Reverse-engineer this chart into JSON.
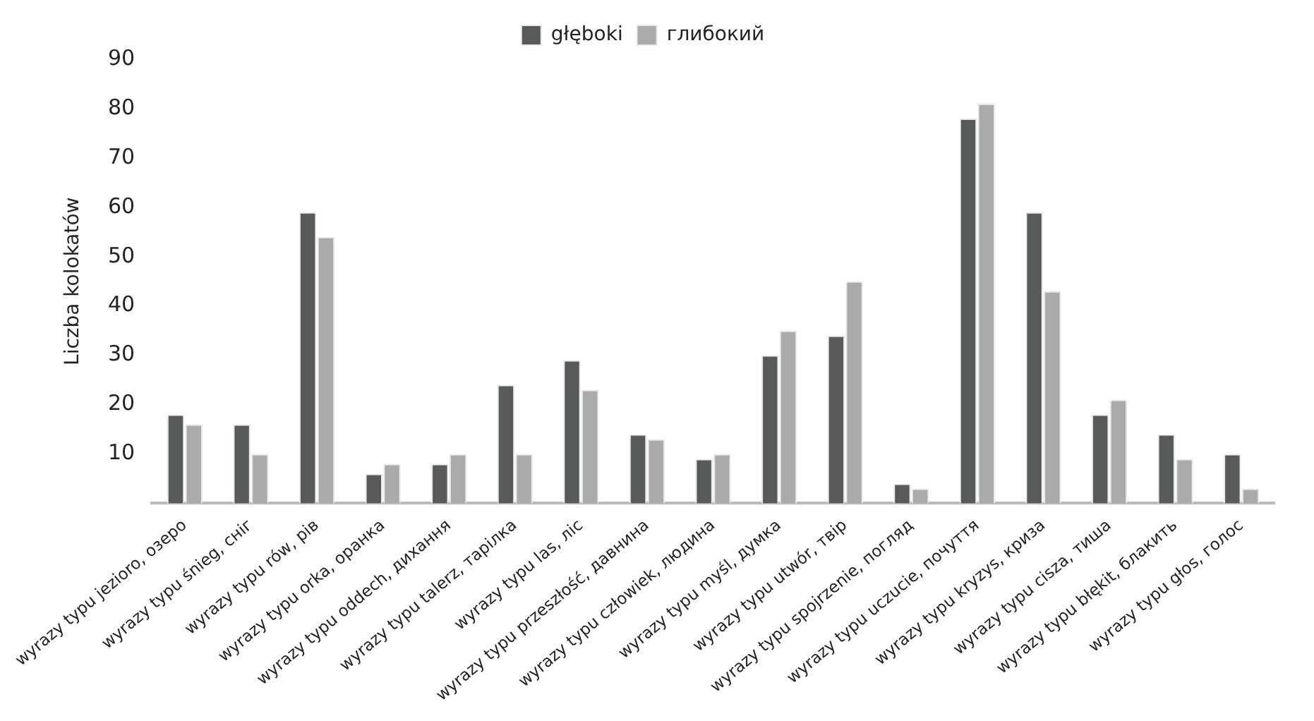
{
  "chart_data": {
    "type": "bar",
    "ylabel": "Liczba kolokatów",
    "categories": [
      "wyrazy typu jezioro, озеро",
      "wyrazy typu śnieg, сніг",
      "wyrazy typu rów, рів",
      "wyrazy typu orka, оранка",
      "wyrazy typu oddech, дихання",
      "wyrazy typu talerz, тарілка",
      "wyrazy typu las, ліс",
      "wyrazy typu przeszłość, давнина",
      "wyrazy typu człowiek, людина",
      "wyrazy typu myśl, думка",
      "wyrazy typu utwór, твір",
      "wyrazy typu spojrzenie, погляд",
      "wyrazy typu uczucie, почуття",
      "wyrazy typu kryzys, криза",
      "wyrazy typu cisza, тиша",
      "wyrazy typu błękit, блакить",
      "wyrazy typu głos, голос"
    ],
    "series": [
      {
        "name": "głęboki",
        "color": "#575a5a",
        "values": [
          18,
          16,
          59,
          6,
          8,
          24,
          29,
          14,
          9,
          30,
          34,
          4,
          78,
          59,
          18,
          14,
          10
        ]
      },
      {
        "name": "глибокий",
        "color": "#a9abab",
        "values": [
          16,
          10,
          54,
          8,
          10,
          10,
          23,
          13,
          10,
          35,
          45,
          3,
          81,
          43,
          21,
          9,
          3
        ]
      }
    ],
    "ylim": [
      0,
      90
    ],
    "yticks": [
      10,
      20,
      30,
      40,
      50,
      60,
      70,
      80,
      90
    ],
    "grid": false,
    "legend": "top"
  }
}
